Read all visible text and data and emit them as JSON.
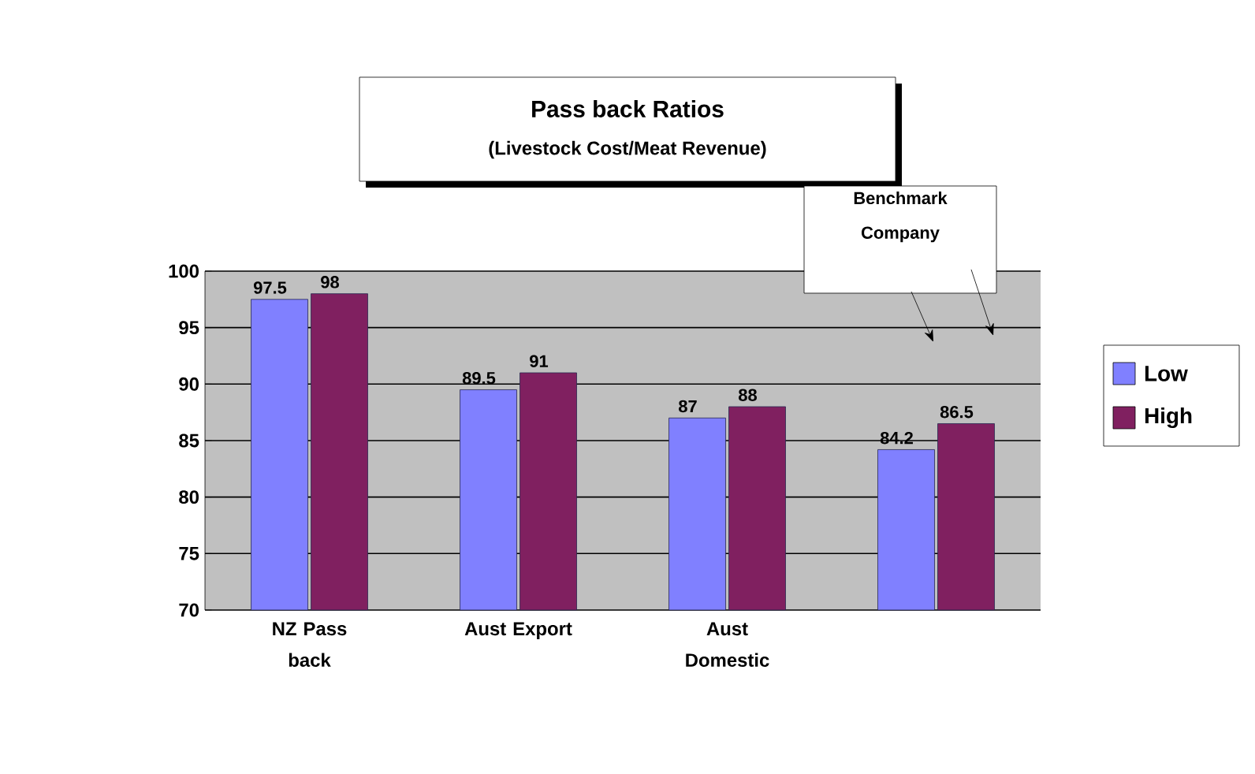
{
  "chart_data": {
    "type": "bar",
    "title": "Pass back Ratios",
    "subtitle": "(Livestock Cost/Meat Revenue)",
    "categories": [
      "NZ Pass back",
      "Aust Export",
      "Aust Domestic",
      null
    ],
    "series": [
      {
        "name": "Low",
        "color": "#8080ff",
        "values": [
          97.5,
          89.5,
          87,
          84.2
        ]
      },
      {
        "name": "High",
        "color": "#802060",
        "values": [
          98,
          91,
          88,
          86.5
        ]
      }
    ],
    "ylim": [
      70,
      100
    ],
    "yticks": [
      70,
      75,
      80,
      85,
      90,
      95,
      100
    ],
    "grid": "y",
    "legend": "right",
    "data_labels": true,
    "annotations": [
      "Benchmark Company"
    ]
  }
}
